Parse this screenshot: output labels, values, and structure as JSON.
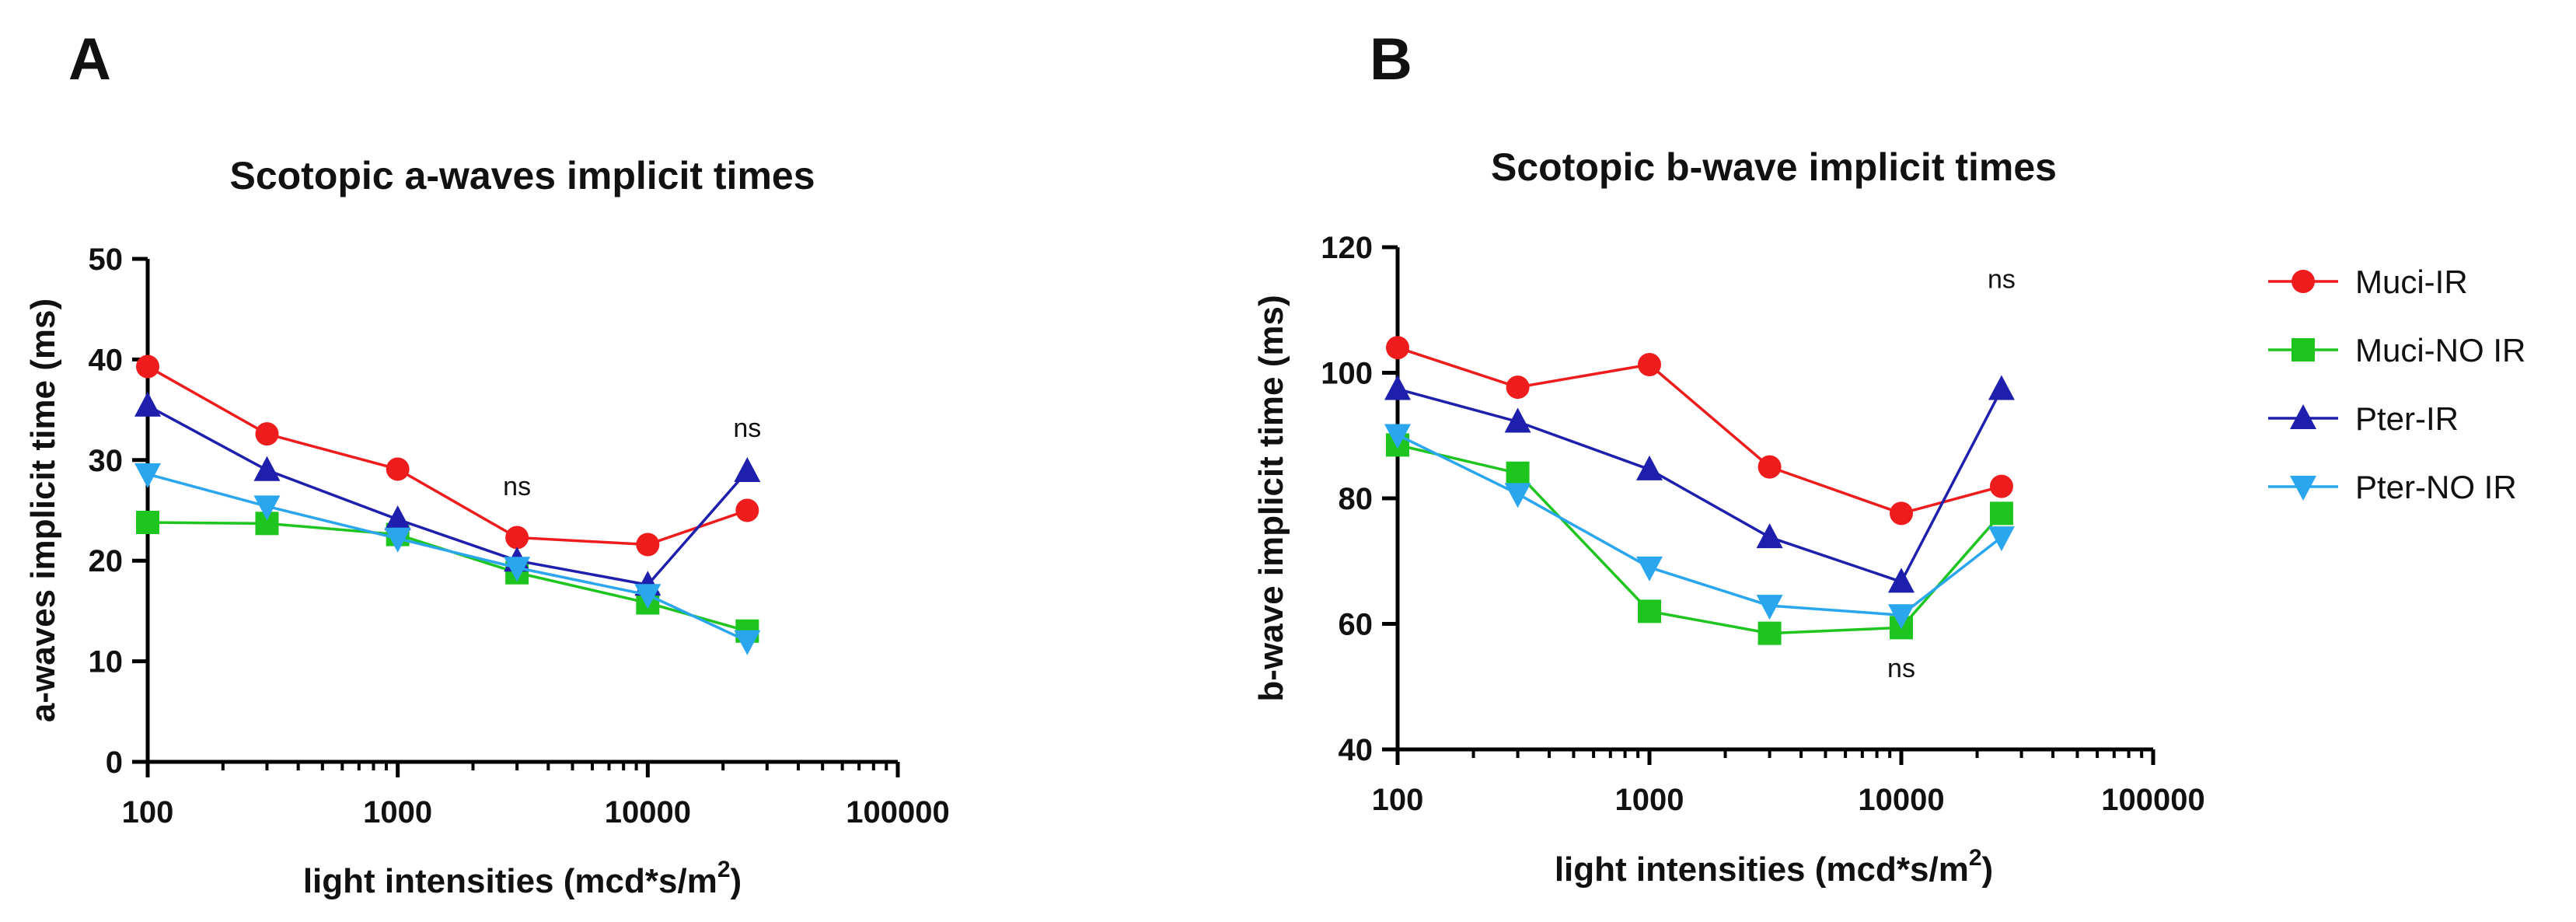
{
  "colors": {
    "Muci-IR": "#ee1c1c",
    "Muci-NO IR": "#1ec51e",
    "Pter-IR": "#1f1fae",
    "Pter-NO IR": "#2aa6ee"
  },
  "legend": [
    {
      "name": "Muci-IR",
      "marker": "circle"
    },
    {
      "name": "Muci-NO IR",
      "marker": "square"
    },
    {
      "name": "Pter-IR",
      "marker": "triangle-up"
    },
    {
      "name": "Pter-NO IR",
      "marker": "triangle-down"
    }
  ],
  "chart_data": [
    {
      "panel": "A",
      "type": "line",
      "title": "Scotopic a-waves implicit times",
      "xlabel": "light intensities (mcd*s/m",
      "xlabel_sup": "2",
      "xlabel_end": ")",
      "ylabel": "a-waves implicit time (ms)",
      "xscale": "log",
      "xlim": [
        100,
        100000
      ],
      "ylim": [
        0,
        50
      ],
      "xticks": [
        "100",
        "1000",
        "10000",
        "100000"
      ],
      "xtick_values": [
        100,
        1000,
        10000,
        100000
      ],
      "yticks": [
        "0",
        "10",
        "20",
        "30",
        "40",
        "50"
      ],
      "ytick_values": [
        0,
        10,
        20,
        30,
        40,
        50
      ],
      "x": [
        100,
        300,
        1000,
        3000,
        10000,
        25000
      ],
      "series": [
        {
          "name": "Muci-IR",
          "marker": "circle",
          "values": [
            39.3,
            32.6,
            29.1,
            22.3,
            21.6,
            25.0
          ]
        },
        {
          "name": "Muci-NO IR",
          "marker": "square",
          "values": [
            23.8,
            23.7,
            22.6,
            18.8,
            15.8,
            13.0
          ]
        },
        {
          "name": "Pter-IR",
          "marker": "triangle-up",
          "values": [
            35.4,
            29.0,
            24.1,
            20.0,
            17.6,
            28.9
          ]
        },
        {
          "name": "Pter-NO IR",
          "marker": "triangle-down",
          "values": [
            28.6,
            25.4,
            22.2,
            19.3,
            16.6,
            12.0
          ]
        }
      ],
      "annotations": [
        {
          "text": "ns",
          "x": 3000,
          "y": 26.5
        },
        {
          "text": "ns",
          "x": 25000,
          "y": 32.3
        }
      ]
    },
    {
      "panel": "B",
      "type": "line",
      "title": "Scotopic b-wave implicit times",
      "xlabel": "light intensities (mcd*s/m",
      "xlabel_sup": "2",
      "xlabel_end": ")",
      "ylabel": "b-wave implicit time (ms)",
      "xscale": "log",
      "xlim": [
        100,
        100000
      ],
      "ylim": [
        40,
        120
      ],
      "xticks": [
        "100",
        "1000",
        "10000",
        "100000"
      ],
      "xtick_values": [
        100,
        1000,
        10000,
        100000
      ],
      "yticks": [
        "40",
        "60",
        "80",
        "100",
        "120"
      ],
      "ytick_values": [
        40,
        60,
        80,
        100,
        120
      ],
      "x": [
        100,
        300,
        1000,
        3000,
        10000,
        25000
      ],
      "series": [
        {
          "name": "Muci-IR",
          "marker": "circle",
          "values": [
            104.0,
            97.7,
            101.3,
            85.0,
            77.6,
            81.9
          ]
        },
        {
          "name": "Muci-NO IR",
          "marker": "square",
          "values": [
            88.5,
            84.0,
            62.0,
            58.5,
            59.4,
            77.6
          ]
        },
        {
          "name": "Pter-IR",
          "marker": "triangle-up",
          "values": [
            97.4,
            92.2,
            84.6,
            73.8,
            66.7,
            97.4
          ]
        },
        {
          "name": "Pter-NO IR",
          "marker": "triangle-down",
          "values": [
            90.1,
            80.7,
            69.0,
            62.9,
            61.4,
            73.8
          ]
        }
      ],
      "annotations": [
        {
          "text": "ns",
          "x": 25000,
          "y": 113.5
        },
        {
          "text": "ns",
          "x": 10000,
          "y": 51.5
        }
      ]
    }
  ]
}
